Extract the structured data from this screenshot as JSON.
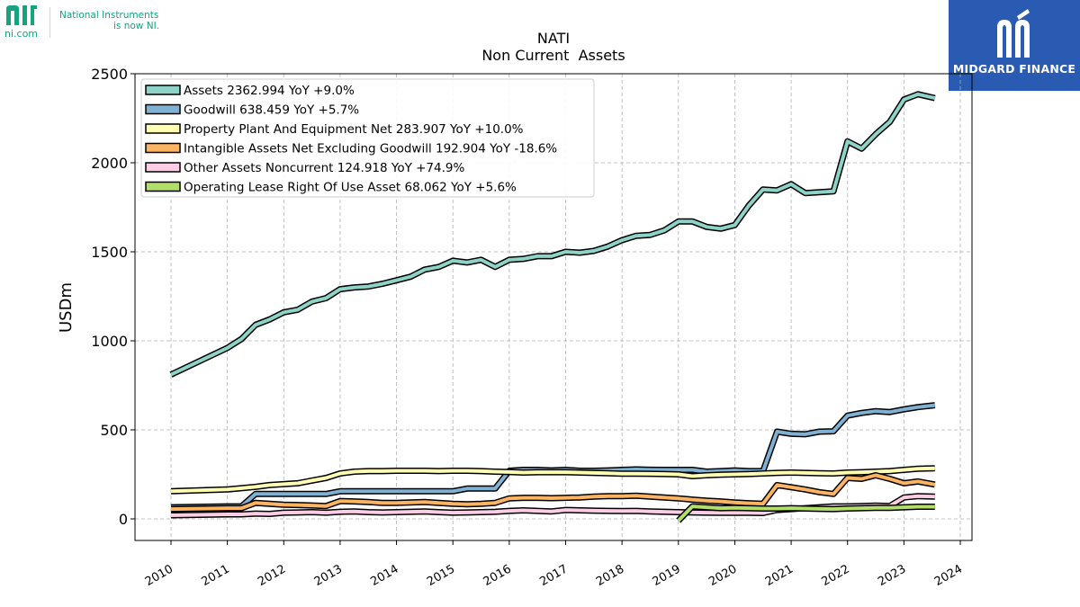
{
  "header": {
    "ni_mark": "ni",
    "ni_domain": "ni.com",
    "ni_line1": "National Instruments",
    "ni_line2": "is now NI.",
    "brand_name": "MIDGARD FINANCE",
    "brand_color": "#2a5bb3",
    "ni_color": "#16a37f"
  },
  "chart_data": {
    "type": "line",
    "title": "NATI",
    "subtitle": "Non Current  Assets",
    "ylabel": "USDm",
    "xlabel": "",
    "xlim": [
      2009.4,
      2024.0
    ],
    "ylim": [
      -120,
      2500
    ],
    "yticks": [
      0,
      500,
      1000,
      1500,
      2000,
      2500
    ],
    "xticks": [
      "2010",
      "2011",
      "2012",
      "2013",
      "2014",
      "2015",
      "2016",
      "2017",
      "2018",
      "2019",
      "2020",
      "2021",
      "2022",
      "2023",
      "2024"
    ],
    "grid": true,
    "legend_position": "top-left",
    "series": [
      {
        "name": "Assets",
        "legend": "Assets  2362.994 YoY +9.0%",
        "color": "#8dd3c7",
        "x": [
          2010.0,
          2011.0,
          2011.25,
          2011.5,
          2011.75,
          2012.0,
          2012.25,
          2012.5,
          2012.75,
          2013.0,
          2013.25,
          2013.5,
          2013.75,
          2014.0,
          2014.25,
          2014.5,
          2014.75,
          2015.0,
          2015.25,
          2015.5,
          2015.75,
          2016.0,
          2016.25,
          2016.5,
          2016.75,
          2017.0,
          2017.25,
          2017.5,
          2017.75,
          2018.0,
          2018.25,
          2018.5,
          2018.75,
          2019.0,
          2019.25,
          2019.5,
          2019.75,
          2020.0,
          2020.25,
          2020.5,
          2020.75,
          2021.0,
          2021.25,
          2021.5,
          2021.75,
          2022.0,
          2022.25,
          2022.5,
          2022.75,
          2023.0,
          2023.25,
          2023.55
        ],
        "y": [
          810,
          960,
          1010,
          1090,
          1120,
          1160,
          1175,
          1220,
          1240,
          1290,
          1300,
          1305,
          1320,
          1340,
          1360,
          1400,
          1415,
          1450,
          1440,
          1455,
          1415,
          1455,
          1460,
          1475,
          1475,
          1500,
          1495,
          1505,
          1530,
          1565,
          1590,
          1595,
          1620,
          1670,
          1670,
          1640,
          1630,
          1650,
          1760,
          1850,
          1845,
          1880,
          1830,
          1835,
          1840,
          2120,
          2080,
          2160,
          2230,
          2355,
          2385,
          2362.994
        ]
      },
      {
        "name": "Goodwill",
        "legend": "Goodwill  638.459 YoY +5.7%",
        "color": "#80b1d3",
        "x": [
          2010.0,
          2011.0,
          2011.25,
          2011.5,
          2011.75,
          2012.0,
          2012.25,
          2012.5,
          2012.75,
          2013.0,
          2013.25,
          2013.5,
          2013.75,
          2014.0,
          2014.25,
          2014.5,
          2014.75,
          2015.0,
          2015.25,
          2015.5,
          2015.75,
          2016.0,
          2016.25,
          2016.5,
          2016.75,
          2017.0,
          2017.25,
          2017.5,
          2017.75,
          2018.0,
          2018.25,
          2018.5,
          2018.75,
          2019.0,
          2019.25,
          2019.5,
          2019.75,
          2020.0,
          2020.25,
          2020.5,
          2020.75,
          2021.0,
          2021.25,
          2021.5,
          2021.75,
          2022.0,
          2022.25,
          2022.5,
          2022.75,
          2023.0,
          2023.25,
          2023.55
        ],
        "y": [
          65,
          70,
          70,
          140,
          140,
          140,
          140,
          140,
          140,
          155,
          155,
          155,
          155,
          155,
          155,
          155,
          155,
          155,
          170,
          170,
          170,
          270,
          275,
          275,
          272,
          275,
          270,
          270,
          272,
          275,
          278,
          276,
          275,
          275,
          275,
          265,
          268,
          272,
          268,
          268,
          490,
          478,
          475,
          490,
          492,
          580,
          595,
          605,
          600,
          615,
          628,
          638.459
        ]
      },
      {
        "name": "Property Plant And Equipment Net",
        "legend": "Property Plant And Equipment Net  283.907 YoY +10.0%",
        "color": "#ffffb3",
        "x": [
          2010.0,
          2011.0,
          2011.25,
          2011.5,
          2011.75,
          2012.0,
          2012.25,
          2012.5,
          2012.75,
          2013.0,
          2013.25,
          2013.5,
          2013.75,
          2014.0,
          2014.25,
          2014.5,
          2014.75,
          2015.0,
          2015.25,
          2015.5,
          2015.75,
          2016.0,
          2016.25,
          2016.5,
          2016.75,
          2017.0,
          2017.25,
          2017.5,
          2017.75,
          2018.0,
          2018.25,
          2018.5,
          2018.75,
          2019.0,
          2019.25,
          2019.5,
          2019.75,
          2020.0,
          2020.25,
          2020.5,
          2020.75,
          2021.0,
          2021.25,
          2021.5,
          2021.75,
          2022.0,
          2022.25,
          2022.5,
          2022.75,
          2023.0,
          2023.25,
          2023.55
        ],
        "y": [
          155,
          165,
          172,
          180,
          190,
          195,
          200,
          215,
          230,
          255,
          265,
          268,
          268,
          270,
          270,
          270,
          268,
          270,
          270,
          268,
          265,
          263,
          260,
          262,
          262,
          262,
          260,
          258,
          256,
          254,
          254,
          253,
          252,
          250,
          240,
          245,
          248,
          250,
          252,
          255,
          258,
          260,
          258,
          256,
          255,
          260,
          262,
          265,
          268,
          275,
          282,
          283.907
        ]
      },
      {
        "name": "Intangible Assets Net Excluding Goodwill",
        "legend": "Intangible Assets Net Excluding Goodwill  192.904 YoY -18.6%",
        "color": "#fdb462",
        "x": [
          2010.0,
          2011.0,
          2011.25,
          2011.5,
          2011.75,
          2012.0,
          2012.25,
          2012.5,
          2012.75,
          2013.0,
          2013.25,
          2013.5,
          2013.75,
          2014.0,
          2014.25,
          2014.5,
          2014.75,
          2015.0,
          2015.25,
          2015.5,
          2015.75,
          2016.0,
          2016.25,
          2016.5,
          2016.75,
          2017.0,
          2017.25,
          2017.5,
          2017.75,
          2018.0,
          2018.25,
          2018.5,
          2018.75,
          2019.0,
          2019.25,
          2019.5,
          2019.75,
          2020.0,
          2020.25,
          2020.5,
          2020.75,
          2021.0,
          2021.25,
          2021.5,
          2021.75,
          2022.0,
          2022.25,
          2022.5,
          2022.75,
          2023.0,
          2023.25,
          2023.55
        ],
        "y": [
          55,
          60,
          60,
          90,
          85,
          80,
          78,
          75,
          72,
          100,
          98,
          95,
          90,
          90,
          92,
          95,
          90,
          85,
          82,
          85,
          90,
          115,
          118,
          118,
          116,
          118,
          120,
          125,
          128,
          128,
          130,
          125,
          120,
          115,
          108,
          102,
          98,
          92,
          88,
          85,
          190,
          178,
          165,
          150,
          140,
          230,
          225,
          245,
          225,
          200,
          210,
          192.904
        ]
      },
      {
        "name": "Other Assets Noncurrent",
        "legend": "Other Assets Noncurrent  124.918 YoY +74.9%",
        "color": "#fccde5",
        "x": [
          2010.0,
          2011.0,
          2011.25,
          2011.5,
          2011.75,
          2012.0,
          2012.25,
          2012.5,
          2012.75,
          2013.0,
          2013.25,
          2013.5,
          2013.75,
          2014.0,
          2014.25,
          2014.5,
          2014.75,
          2015.0,
          2015.25,
          2015.5,
          2015.75,
          2016.0,
          2016.25,
          2016.5,
          2016.75,
          2017.0,
          2017.25,
          2017.5,
          2017.75,
          2018.0,
          2018.25,
          2018.5,
          2018.75,
          2019.0,
          2019.25,
          2019.5,
          2019.75,
          2020.0,
          2020.25,
          2020.5,
          2020.75,
          2021.0,
          2021.25,
          2021.5,
          2021.75,
          2022.0,
          2022.25,
          2022.5,
          2022.75,
          2023.0,
          2023.25,
          2023.55
        ],
        "y": [
          20,
          25,
          25,
          30,
          28,
          35,
          36,
          38,
          35,
          40,
          42,
          38,
          36,
          38,
          40,
          42,
          38,
          35,
          36,
          38,
          40,
          45,
          48,
          45,
          42,
          50,
          48,
          46,
          45,
          44,
          45,
          42,
          40,
          38,
          36,
          35,
          34,
          35,
          34,
          33,
          50,
          55,
          60,
          65,
          70,
          70,
          72,
          74,
          72,
          120,
          128,
          124.918
        ]
      },
      {
        "name": "Operating Lease Right Of Use Asset",
        "legend": "Operating Lease Right Of Use Asset  68.062 YoY +5.6%",
        "color": "#b3de69",
        "x": [
          2019.0,
          2019.25,
          2019.5,
          2019.75,
          2020.0,
          2020.25,
          2020.5,
          2020.75,
          2021.0,
          2021.25,
          2021.5,
          2021.75,
          2022.0,
          2022.25,
          2022.5,
          2022.75,
          2023.0,
          2023.25,
          2023.55
        ],
        "y": [
          -10,
          70,
          65,
          60,
          62,
          60,
          58,
          58,
          60,
          58,
          56,
          55,
          58,
          60,
          62,
          62,
          65,
          68,
          68.062
        ]
      }
    ]
  }
}
